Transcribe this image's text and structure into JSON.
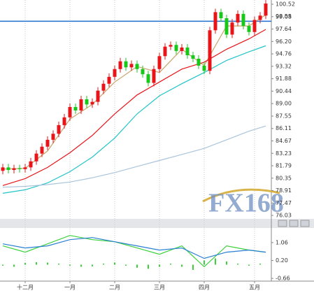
{
  "chart_data": [
    {
      "type": "candlestick",
      "open": [
        81.2,
        81.6,
        81.3,
        81.5,
        81.4,
        81.6,
        82.3,
        83.2,
        84.0,
        84.8,
        85.5,
        86.5,
        87.4,
        88.6,
        88.2,
        89.5,
        88.9,
        89.2,
        90.5,
        91.3,
        92.1,
        93.0,
        93.9,
        93.2,
        93.6,
        93.0,
        92.4,
        91.4,
        93.0,
        94.5,
        95.6,
        95.8,
        95.1,
        95.5,
        94.6,
        94.2,
        93.4,
        92.8,
        97.5,
        99.6,
        98.9,
        97.0,
        98.4,
        99.4,
        98.0,
        97.3,
        98.7,
        99.2
      ],
      "high": [
        82.0,
        82.0,
        81.9,
        81.9,
        82.0,
        82.7,
        83.6,
        84.4,
        85.2,
        85.9,
        86.9,
        87.8,
        89.0,
        89.0,
        89.9,
        89.9,
        89.6,
        90.9,
        91.7,
        92.5,
        93.4,
        94.3,
        94.3,
        94.0,
        94.0,
        93.4,
        92.8,
        93.4,
        94.9,
        96.0,
        96.2,
        96.2,
        95.9,
        95.9,
        95.0,
        94.6,
        93.8,
        97.9,
        100.0,
        100.0,
        99.3,
        98.8,
        99.8,
        99.8,
        98.4,
        99.1,
        99.6,
        101.0
      ],
      "low": [
        80.8,
        80.9,
        80.9,
        81.0,
        81.0,
        81.2,
        81.9,
        82.8,
        83.6,
        84.4,
        85.1,
        86.1,
        87.0,
        87.8,
        87.8,
        88.5,
        88.5,
        88.8,
        90.1,
        90.9,
        91.7,
        92.6,
        92.8,
        92.8,
        92.6,
        92.0,
        91.0,
        91.0,
        92.6,
        94.1,
        95.2,
        94.7,
        94.7,
        94.2,
        93.8,
        93.0,
        92.4,
        92.4,
        97.1,
        98.5,
        96.6,
        96.6,
        98.0,
        97.6,
        96.9,
        96.9,
        98.3,
        98.8
      ],
      "close": [
        81.6,
        81.3,
        81.5,
        81.4,
        81.6,
        82.3,
        83.2,
        84.0,
        84.8,
        85.5,
        86.5,
        87.4,
        88.6,
        88.2,
        89.5,
        88.9,
        89.2,
        90.5,
        91.3,
        92.1,
        93.0,
        93.9,
        93.2,
        93.6,
        93.0,
        92.4,
        91.4,
        93.0,
        94.5,
        95.6,
        95.8,
        95.1,
        95.5,
        94.6,
        94.2,
        93.4,
        92.8,
        97.5,
        99.6,
        98.9,
        97.0,
        98.4,
        99.4,
        98.0,
        97.3,
        98.7,
        99.2,
        100.6
      ],
      "up_color": "#e8141a",
      "down_color": "#18c818",
      "lines": [
        {
          "color": "#c9a46a",
          "x": [
            0,
            4,
            8,
            12,
            16,
            20,
            24,
            28,
            32,
            36,
            40,
            44,
            47
          ],
          "values": [
            81.4,
            81.5,
            83.5,
            87.2,
            88.9,
            91.5,
            93.3,
            92.6,
            95.3,
            93.4,
            98.0,
            98.0,
            99.3
          ]
        },
        {
          "color": "#e8141a",
          "x": [
            0,
            4,
            8,
            12,
            16,
            20,
            24,
            28,
            32,
            36,
            40,
            44,
            47
          ],
          "values": [
            79.5,
            80.3,
            81.6,
            83.3,
            85.3,
            87.8,
            90.0,
            91.5,
            93.0,
            93.8,
            95.3,
            96.5,
            97.6
          ]
        },
        {
          "color": "#22c4c8",
          "x": [
            0,
            4,
            8,
            12,
            16,
            20,
            24,
            28,
            32,
            36,
            40,
            44,
            47
          ],
          "values": [
            78.6,
            79.0,
            79.8,
            81.1,
            82.8,
            85.0,
            87.8,
            89.9,
            91.3,
            92.6,
            94.0,
            95.0,
            95.7
          ]
        },
        {
          "color": "#a9c4dc",
          "x": [
            0,
            4,
            8,
            12,
            16,
            20,
            24,
            28,
            32,
            36,
            40,
            44,
            47
          ],
          "values": [
            79.3,
            79.4,
            79.6,
            79.9,
            80.4,
            81.0,
            81.7,
            82.4,
            83.1,
            83.8,
            84.8,
            85.8,
            86.4
          ]
        }
      ],
      "hline": {
        "value": 98.55,
        "color": "#1f6fd1"
      },
      "xlim": [
        -0.5,
        48
      ],
      "xticks": [
        {
          "value": 4,
          "label": "十二月"
        },
        {
          "value": 12,
          "label": "一月"
        },
        {
          "value": 20,
          "label": "二月"
        },
        {
          "value": 28,
          "label": "三月"
        },
        {
          "value": 36,
          "label": "四月"
        },
        {
          "value": 45,
          "label": "五月"
        }
      ],
      "ylim": [
        75.71,
        101.01
      ],
      "yticks": [
        100.52,
        99.08,
        97.64,
        {
          "value": 96.2,
          "label": "96.20"
        },
        94.76,
        93.32,
        91.88,
        90.44,
        {
          "value": 89,
          "label": "89.00"
        },
        87.55,
        86.11,
        84.67,
        83.23,
        81.79,
        80.35,
        78.91,
        77.47,
        76.03
      ]
    },
    {
      "type": "macd",
      "series": [
        {
          "color": "#3ad13a",
          "x": [
            0,
            4,
            8,
            12,
            16,
            20,
            24,
            28,
            32,
            36,
            40,
            44,
            47
          ],
          "values": [
            0.9,
            0.6,
            1.0,
            1.4,
            1.2,
            1.1,
            0.8,
            0.5,
            0.9,
            -0.1,
            0.9,
            0.7,
            0.6
          ]
        },
        {
          "color": "#2a7fd4",
          "x": [
            0,
            4,
            8,
            12,
            16,
            20,
            24,
            28,
            32,
            36,
            40,
            44,
            47
          ],
          "values": [
            1.0,
            0.8,
            0.9,
            1.2,
            1.3,
            1.1,
            0.9,
            0.7,
            0.8,
            0.3,
            0.6,
            0.7,
            0.6
          ]
        }
      ],
      "histogram": {
        "color": "#3ad13a",
        "x": [
          0,
          2,
          4,
          6,
          8,
          10,
          12,
          14,
          16,
          18,
          20,
          22,
          24,
          26,
          28,
          30,
          32,
          34,
          36,
          38,
          40,
          42,
          44,
          46
        ],
        "values": [
          -0.05,
          -0.1,
          0.08,
          0.12,
          0.1,
          0.05,
          -0.05,
          -0.1,
          -0.08,
          0.05,
          0.1,
          -0.05,
          -0.15,
          -0.2,
          -0.1,
          0.05,
          -0.1,
          -0.25,
          0.2,
          0.3,
          0.15,
          0.05,
          -0.05,
          0.05
        ]
      },
      "xlim": [
        -0.5,
        48
      ],
      "ylim": [
        -0.79,
        1.76
      ],
      "yticks": [
        1.06,
        {
          "value": 0.2,
          "label": "0.20"
        },
        -0.66
      ]
    }
  ],
  "watermark": "FX168"
}
